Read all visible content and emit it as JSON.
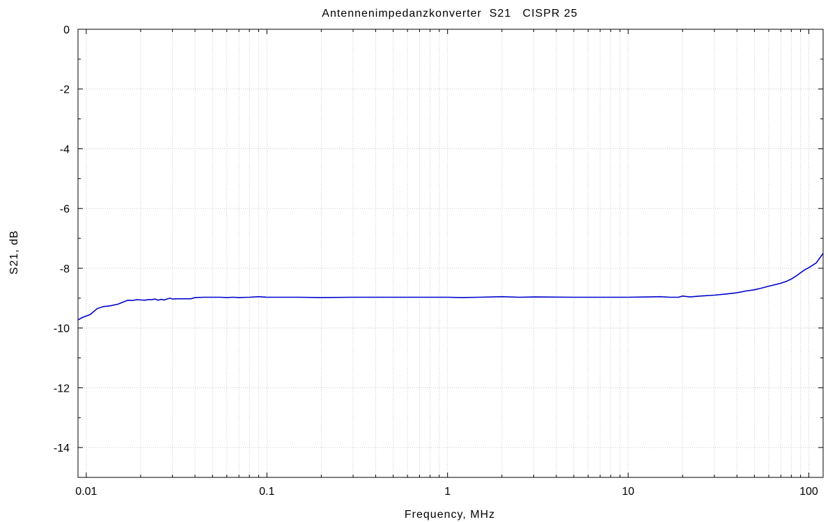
{
  "chart_data": {
    "type": "line",
    "title": "Antennenimpedanzkonverter  S21   CISPR 25",
    "xlabel": "Frequency, MHz",
    "ylabel": "S21, dB",
    "xscale": "log",
    "xlim": [
      0.009,
      120
    ],
    "ylim": [
      -15,
      0
    ],
    "grid": true,
    "x_ticks": [
      0.01,
      0.1,
      1,
      10,
      100
    ],
    "x_tick_labels": [
      "0.01",
      "0.1",
      "1",
      "10",
      "100"
    ],
    "y_ticks": [
      0,
      -2,
      -4,
      -6,
      -8,
      -10,
      -12,
      -14
    ],
    "y_tick_labels": [
      "0",
      "-2",
      "-4",
      "-6",
      "-8",
      "-10",
      "-12",
      "-14"
    ],
    "colors": {
      "series": "#0000cc",
      "grid": "#c8c8c8",
      "frame": "#000000"
    },
    "series": [
      {
        "x": [
          0.009,
          0.0095,
          0.0105,
          0.0115,
          0.0125,
          0.0135,
          0.015,
          0.016,
          0.017,
          0.018,
          0.019,
          0.02,
          0.021,
          0.022,
          0.023,
          0.024,
          0.025,
          0.026,
          0.027,
          0.028,
          0.029,
          0.03,
          0.032,
          0.035,
          0.038,
          0.04,
          0.045,
          0.05,
          0.055,
          0.06,
          0.065,
          0.07,
          0.08,
          0.09,
          0.1,
          0.15,
          0.2,
          0.3,
          0.5,
          0.7,
          1,
          1.2,
          1.5,
          2,
          2.5,
          3,
          5,
          7,
          10,
          13,
          15,
          17,
          19,
          20,
          22,
          25,
          30,
          35,
          40,
          45,
          50,
          55,
          60,
          65,
          70,
          75,
          80,
          85,
          90,
          95,
          100,
          110,
          120
        ],
        "y": [
          -9.73,
          -9.65,
          -9.55,
          -9.35,
          -9.28,
          -9.26,
          -9.2,
          -9.13,
          -9.07,
          -9.08,
          -9.05,
          -9.06,
          -9.07,
          -9.05,
          -9.05,
          -9.03,
          -9.07,
          -9.04,
          -9.06,
          -9.03,
          -9.0,
          -9.03,
          -9.02,
          -9.02,
          -9.02,
          -8.98,
          -8.97,
          -8.97,
          -8.97,
          -8.98,
          -8.97,
          -8.98,
          -8.97,
          -8.95,
          -8.97,
          -8.97,
          -8.98,
          -8.97,
          -8.97,
          -8.97,
          -8.97,
          -8.98,
          -8.97,
          -8.95,
          -8.97,
          -8.96,
          -8.97,
          -8.97,
          -8.97,
          -8.96,
          -8.95,
          -8.97,
          -8.97,
          -8.93,
          -8.96,
          -8.93,
          -8.9,
          -8.86,
          -8.82,
          -8.76,
          -8.72,
          -8.66,
          -8.6,
          -8.55,
          -8.5,
          -8.44,
          -8.36,
          -8.26,
          -8.15,
          -8.05,
          -7.98,
          -7.82,
          -7.5
        ]
      }
    ]
  }
}
